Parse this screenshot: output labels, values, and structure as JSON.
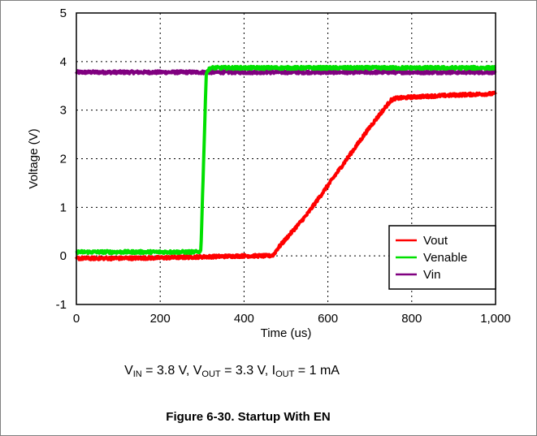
{
  "chart_data": {
    "type": "line",
    "xlabel": "Time (us)",
    "ylabel": "Voltage (V)",
    "xlim": [
      0,
      1000
    ],
    "ylim": [
      -1,
      5
    ],
    "xticks": [
      0,
      200,
      400,
      600,
      800,
      1000
    ],
    "xtick_labels": [
      "0",
      "200",
      "400",
      "600",
      "800",
      "1,000"
    ],
    "yticks": [
      -1,
      0,
      1,
      2,
      3,
      4,
      5
    ],
    "ytick_labels": [
      "-1",
      "0",
      "1",
      "2",
      "3",
      "4",
      "5"
    ],
    "grid": true,
    "legend": "bottom-right",
    "series": [
      {
        "name": "Vout",
        "color": "#ff0000",
        "x": [
          0,
          100,
          200,
          300,
          400,
          460,
          470,
          480,
          500,
          550,
          600,
          650,
          700,
          750,
          760,
          800,
          900,
          1000
        ],
        "y": [
          -0.05,
          -0.05,
          -0.04,
          -0.02,
          0.0,
          0.0,
          0.02,
          0.15,
          0.35,
          0.85,
          1.45,
          2.05,
          2.65,
          3.2,
          3.24,
          3.27,
          3.31,
          3.34
        ]
      },
      {
        "name": "Venable",
        "color": "#00e000",
        "x": [
          0,
          100,
          200,
          290,
          297,
          310,
          320,
          500,
          700,
          1000
        ],
        "y": [
          0.08,
          0.08,
          0.08,
          0.08,
          0.1,
          3.78,
          3.87,
          3.87,
          3.87,
          3.87
        ]
      },
      {
        "name": "Vin",
        "color": "#800080",
        "x": [
          0,
          200,
          400,
          600,
          800,
          1000
        ],
        "y": [
          3.78,
          3.78,
          3.78,
          3.78,
          3.78,
          3.78
        ]
      }
    ]
  },
  "conditions": {
    "vin_symbol": "V",
    "vin_sub": "IN",
    "vin_value": " = 3.8 V, ",
    "vout_symbol": "V",
    "vout_sub": "OUT",
    "vout_value": " = 3.3 V, ",
    "iout_symbol": "I",
    "iout_sub": "OUT",
    "iout_value": " = 1 mA"
  },
  "caption": "Figure 6-30. Startup With EN"
}
